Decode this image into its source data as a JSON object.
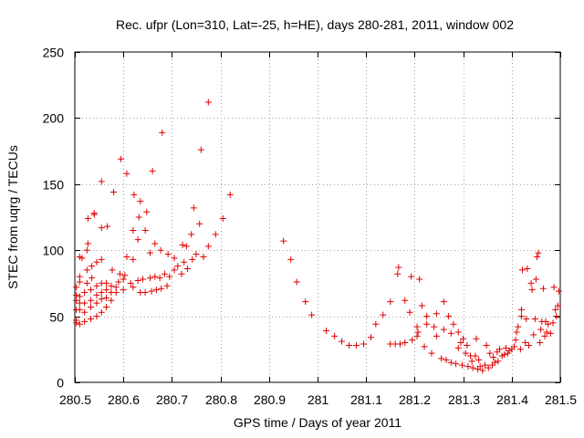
{
  "chart_data": {
    "type": "scatter",
    "title": "Rec. ufpr (Lon=310, Lat=-25, h=HE), days 280-281, 2011, window 002",
    "xlabel": "GPS time / Days of year 2011",
    "ylabel": "STEC from uqrg / TECUs",
    "xlim": [
      280.5,
      281.5
    ],
    "ylim": [
      0,
      250
    ],
    "xticks": [
      280.5,
      280.6,
      280.7,
      280.8,
      280.9,
      281,
      281.1,
      281.2,
      281.3,
      281.4,
      281.5
    ],
    "xtick_labels": [
      "280.5",
      "280.6",
      "280.7",
      "280.8",
      "280.9",
      "281",
      "281.1",
      "281.2",
      "281.3",
      "281.4",
      "281.5"
    ],
    "yticks": [
      0,
      50,
      100,
      150,
      200,
      250
    ],
    "ytick_labels": [
      "0",
      "50",
      "100",
      "150",
      "200",
      "250"
    ],
    "grid": true,
    "marker": "+",
    "color": "#e00000",
    "series": [
      {
        "name": "STEC",
        "points": [
          [
            280.503,
            45
          ],
          [
            280.503,
            47
          ],
          [
            280.503,
            55
          ],
          [
            280.503,
            62
          ],
          [
            280.503,
            66
          ],
          [
            280.503,
            72
          ],
          [
            280.51,
            44
          ],
          [
            280.51,
            55
          ],
          [
            280.51,
            60
          ],
          [
            280.51,
            65
          ],
          [
            280.51,
            76
          ],
          [
            280.51,
            80
          ],
          [
            280.51,
            95
          ],
          [
            280.515,
            94
          ],
          [
            280.52,
            46
          ],
          [
            280.52,
            53
          ],
          [
            280.52,
            60
          ],
          [
            280.52,
            68
          ],
          [
            280.525,
            75
          ],
          [
            280.525,
            85
          ],
          [
            280.525,
            100
          ],
          [
            280.527,
            105
          ],
          [
            280.527,
            124
          ],
          [
            280.533,
            48
          ],
          [
            280.533,
            57
          ],
          [
            280.533,
            62
          ],
          [
            280.533,
            70
          ],
          [
            280.535,
            79
          ],
          [
            280.535,
            88
          ],
          [
            280.54,
            128
          ],
          [
            280.54,
            127
          ],
          [
            280.545,
            50
          ],
          [
            280.545,
            60
          ],
          [
            280.545,
            66
          ],
          [
            280.545,
            73
          ],
          [
            280.545,
            91
          ],
          [
            280.555,
            53
          ],
          [
            280.555,
            63
          ],
          [
            280.555,
            68
          ],
          [
            280.555,
            75
          ],
          [
            280.555,
            93
          ],
          [
            280.555,
            117
          ],
          [
            280.555,
            152
          ],
          [
            280.565,
            57
          ],
          [
            280.565,
            64
          ],
          [
            280.565,
            70
          ],
          [
            280.565,
            75
          ],
          [
            280.567,
            118
          ],
          [
            280.575,
            62
          ],
          [
            280.575,
            68
          ],
          [
            280.575,
            73
          ],
          [
            280.577,
            85
          ],
          [
            280.58,
            144
          ],
          [
            280.585,
            68
          ],
          [
            280.585,
            72
          ],
          [
            280.59,
            76
          ],
          [
            280.593,
            82
          ],
          [
            280.595,
            169
          ],
          [
            280.6,
            70
          ],
          [
            280.6,
            78
          ],
          [
            280.603,
            81
          ],
          [
            280.607,
            95
          ],
          [
            280.607,
            158
          ],
          [
            280.615,
            75
          ],
          [
            280.62,
            72
          ],
          [
            280.62,
            93
          ],
          [
            280.62,
            115
          ],
          [
            280.622,
            142
          ],
          [
            280.63,
            77
          ],
          [
            280.63,
            108
          ],
          [
            280.632,
            125
          ],
          [
            280.635,
            68
          ],
          [
            280.635,
            137
          ],
          [
            280.64,
            78
          ],
          [
            280.645,
            115
          ],
          [
            280.645,
            68
          ],
          [
            280.648,
            129
          ],
          [
            280.655,
            79
          ],
          [
            280.655,
            98
          ],
          [
            280.658,
            69
          ],
          [
            280.66,
            160
          ],
          [
            280.665,
            80
          ],
          [
            280.665,
            105
          ],
          [
            280.668,
            70
          ],
          [
            280.675,
            79
          ],
          [
            280.677,
            100
          ],
          [
            280.678,
            71
          ],
          [
            280.68,
            189
          ],
          [
            280.685,
            82
          ],
          [
            280.69,
            73
          ],
          [
            280.692,
            97
          ],
          [
            280.695,
            80
          ],
          [
            280.705,
            85
          ],
          [
            280.705,
            94
          ],
          [
            280.712,
            88
          ],
          [
            280.72,
            82
          ],
          [
            280.722,
            104
          ],
          [
            280.725,
            91
          ],
          [
            280.73,
            103
          ],
          [
            280.732,
            86
          ],
          [
            280.74,
            112
          ],
          [
            280.742,
            93
          ],
          [
            280.745,
            132
          ],
          [
            280.75,
            97
          ],
          [
            280.757,
            120
          ],
          [
            280.76,
            176
          ],
          [
            280.765,
            95
          ],
          [
            280.775,
            212
          ],
          [
            280.775,
            103
          ],
          [
            280.79,
            112
          ],
          [
            280.805,
            124
          ],
          [
            280.82,
            142
          ],
          [
            280.93,
            107
          ],
          [
            280.945,
            93
          ],
          [
            280.957,
            76
          ],
          [
            280.975,
            61
          ],
          [
            280.988,
            51
          ],
          [
            281.018,
            39
          ],
          [
            281.035,
            35
          ],
          [
            281.05,
            31
          ],
          [
            281.065,
            28
          ],
          [
            281.08,
            28
          ],
          [
            281.095,
            29
          ],
          [
            281.11,
            34
          ],
          [
            281.12,
            44
          ],
          [
            281.135,
            51
          ],
          [
            281.15,
            61
          ],
          [
            281.15,
            29
          ],
          [
            281.16,
            29
          ],
          [
            281.165,
            82
          ],
          [
            281.167,
            87
          ],
          [
            281.17,
            29
          ],
          [
            281.18,
            30
          ],
          [
            281.18,
            62
          ],
          [
            281.19,
            53
          ],
          [
            281.193,
            80
          ],
          [
            281.195,
            32
          ],
          [
            281.205,
            35
          ],
          [
            281.205,
            42
          ],
          [
            281.207,
            38
          ],
          [
            281.21,
            78
          ],
          [
            281.215,
            58
          ],
          [
            281.22,
            27
          ],
          [
            281.225,
            50
          ],
          [
            281.225,
            44
          ],
          [
            281.235,
            22
          ],
          [
            281.24,
            42
          ],
          [
            281.245,
            52
          ],
          [
            281.245,
            35
          ],
          [
            281.255,
            18
          ],
          [
            281.26,
            61
          ],
          [
            281.26,
            40
          ],
          [
            281.265,
            17
          ],
          [
            281.27,
            50
          ],
          [
            281.275,
            15
          ],
          [
            281.275,
            37
          ],
          [
            281.28,
            44
          ],
          [
            281.285,
            14
          ],
          [
            281.29,
            38
          ],
          [
            281.29,
            26
          ],
          [
            281.295,
            30
          ],
          [
            281.298,
            13
          ],
          [
            281.3,
            33
          ],
          [
            281.305,
            22
          ],
          [
            281.308,
            28
          ],
          [
            281.31,
            12
          ],
          [
            281.315,
            20
          ],
          [
            281.318,
            16
          ],
          [
            281.32,
            11
          ],
          [
            281.325,
            20
          ],
          [
            281.327,
            33
          ],
          [
            281.33,
            10
          ],
          [
            281.332,
            17
          ],
          [
            281.335,
            12
          ],
          [
            281.34,
            9
          ],
          [
            281.345,
            13
          ],
          [
            281.348,
            28
          ],
          [
            281.352,
            11
          ],
          [
            281.355,
            22
          ],
          [
            281.36,
            13
          ],
          [
            281.362,
            19
          ],
          [
            281.365,
            15
          ],
          [
            281.37,
            23
          ],
          [
            281.372,
            16
          ],
          [
            281.375,
            25
          ],
          [
            281.38,
            20
          ],
          [
            281.385,
            21
          ],
          [
            281.388,
            26
          ],
          [
            281.392,
            22
          ],
          [
            281.395,
            24
          ],
          [
            281.4,
            25
          ],
          [
            281.405,
            27
          ],
          [
            281.408,
            32
          ],
          [
            281.41,
            38
          ],
          [
            281.413,
            42
          ],
          [
            281.418,
            25
          ],
          [
            281.42,
            50
          ],
          [
            281.42,
            55
          ],
          [
            281.422,
            85
          ],
          [
            281.428,
            30
          ],
          [
            281.43,
            48
          ],
          [
            281.432,
            86
          ],
          [
            281.435,
            28
          ],
          [
            281.44,
            75
          ],
          [
            281.442,
            70
          ],
          [
            281.445,
            36
          ],
          [
            281.448,
            48
          ],
          [
            281.45,
            78
          ],
          [
            281.452,
            95
          ],
          [
            281.455,
            98
          ],
          [
            281.458,
            30
          ],
          [
            281.46,
            40
          ],
          [
            281.462,
            46
          ],
          [
            281.465,
            71
          ],
          [
            281.468,
            35
          ],
          [
            281.47,
            46
          ],
          [
            281.472,
            38
          ],
          [
            281.475,
            44
          ],
          [
            281.48,
            37
          ],
          [
            281.485,
            45
          ],
          [
            281.487,
            72
          ],
          [
            281.49,
            55
          ],
          [
            281.492,
            50
          ],
          [
            281.495,
            58
          ],
          [
            281.497,
            69
          ]
        ]
      }
    ]
  }
}
